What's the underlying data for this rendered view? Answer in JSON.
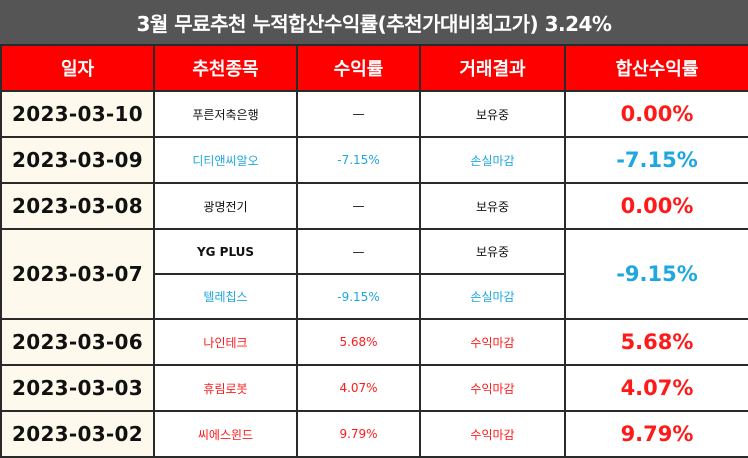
{
  "title": "3월 무료추천 누적합산수익률(추천가대비최고가) 3.24%",
  "headers": {
    "date": "일자",
    "stock": "추천종목",
    "return": "수익률",
    "result": "거래결과",
    "total": "합산수익률"
  },
  "rows": [
    {
      "date": "2023-03-10",
      "stock": "푸른저축은행",
      "return": "—",
      "result": "보유중",
      "total": "0.00%"
    },
    {
      "date": "2023-03-09",
      "stock": "디티앤씨알오",
      "return": "-7.15%",
      "result": "손실마감",
      "total": "-7.15%"
    },
    {
      "date": "2023-03-08",
      "stock": "광명전기",
      "return": "—",
      "result": "보유중",
      "total": "0.00%"
    },
    {
      "date": "2023-03-07",
      "stock": "YG PLUS",
      "return": "—",
      "result": "보유중",
      "total": "-9.15%",
      "stock2": "텔레칩스",
      "return2": "-9.15%",
      "result2": "손실마감"
    },
    {
      "date": "2023-03-06",
      "stock": "나인테크",
      "return": "5.68%",
      "result": "수익마감",
      "total": "5.68%"
    },
    {
      "date": "2023-03-03",
      "stock": "휴림로봇",
      "return": "4.07%",
      "result": "수익마감",
      "total": "4.07%"
    },
    {
      "date": "2023-03-02",
      "stock": "씨에스윈드",
      "return": "9.79%",
      "result": "수익마감",
      "total": "9.79%"
    }
  ],
  "colors": {
    "header_bg": "#ff0000",
    "title_bg": "#555555",
    "profit": "#ff1a1a",
    "loss": "#1ea7e0",
    "date_bg": "#fdf9ec"
  }
}
